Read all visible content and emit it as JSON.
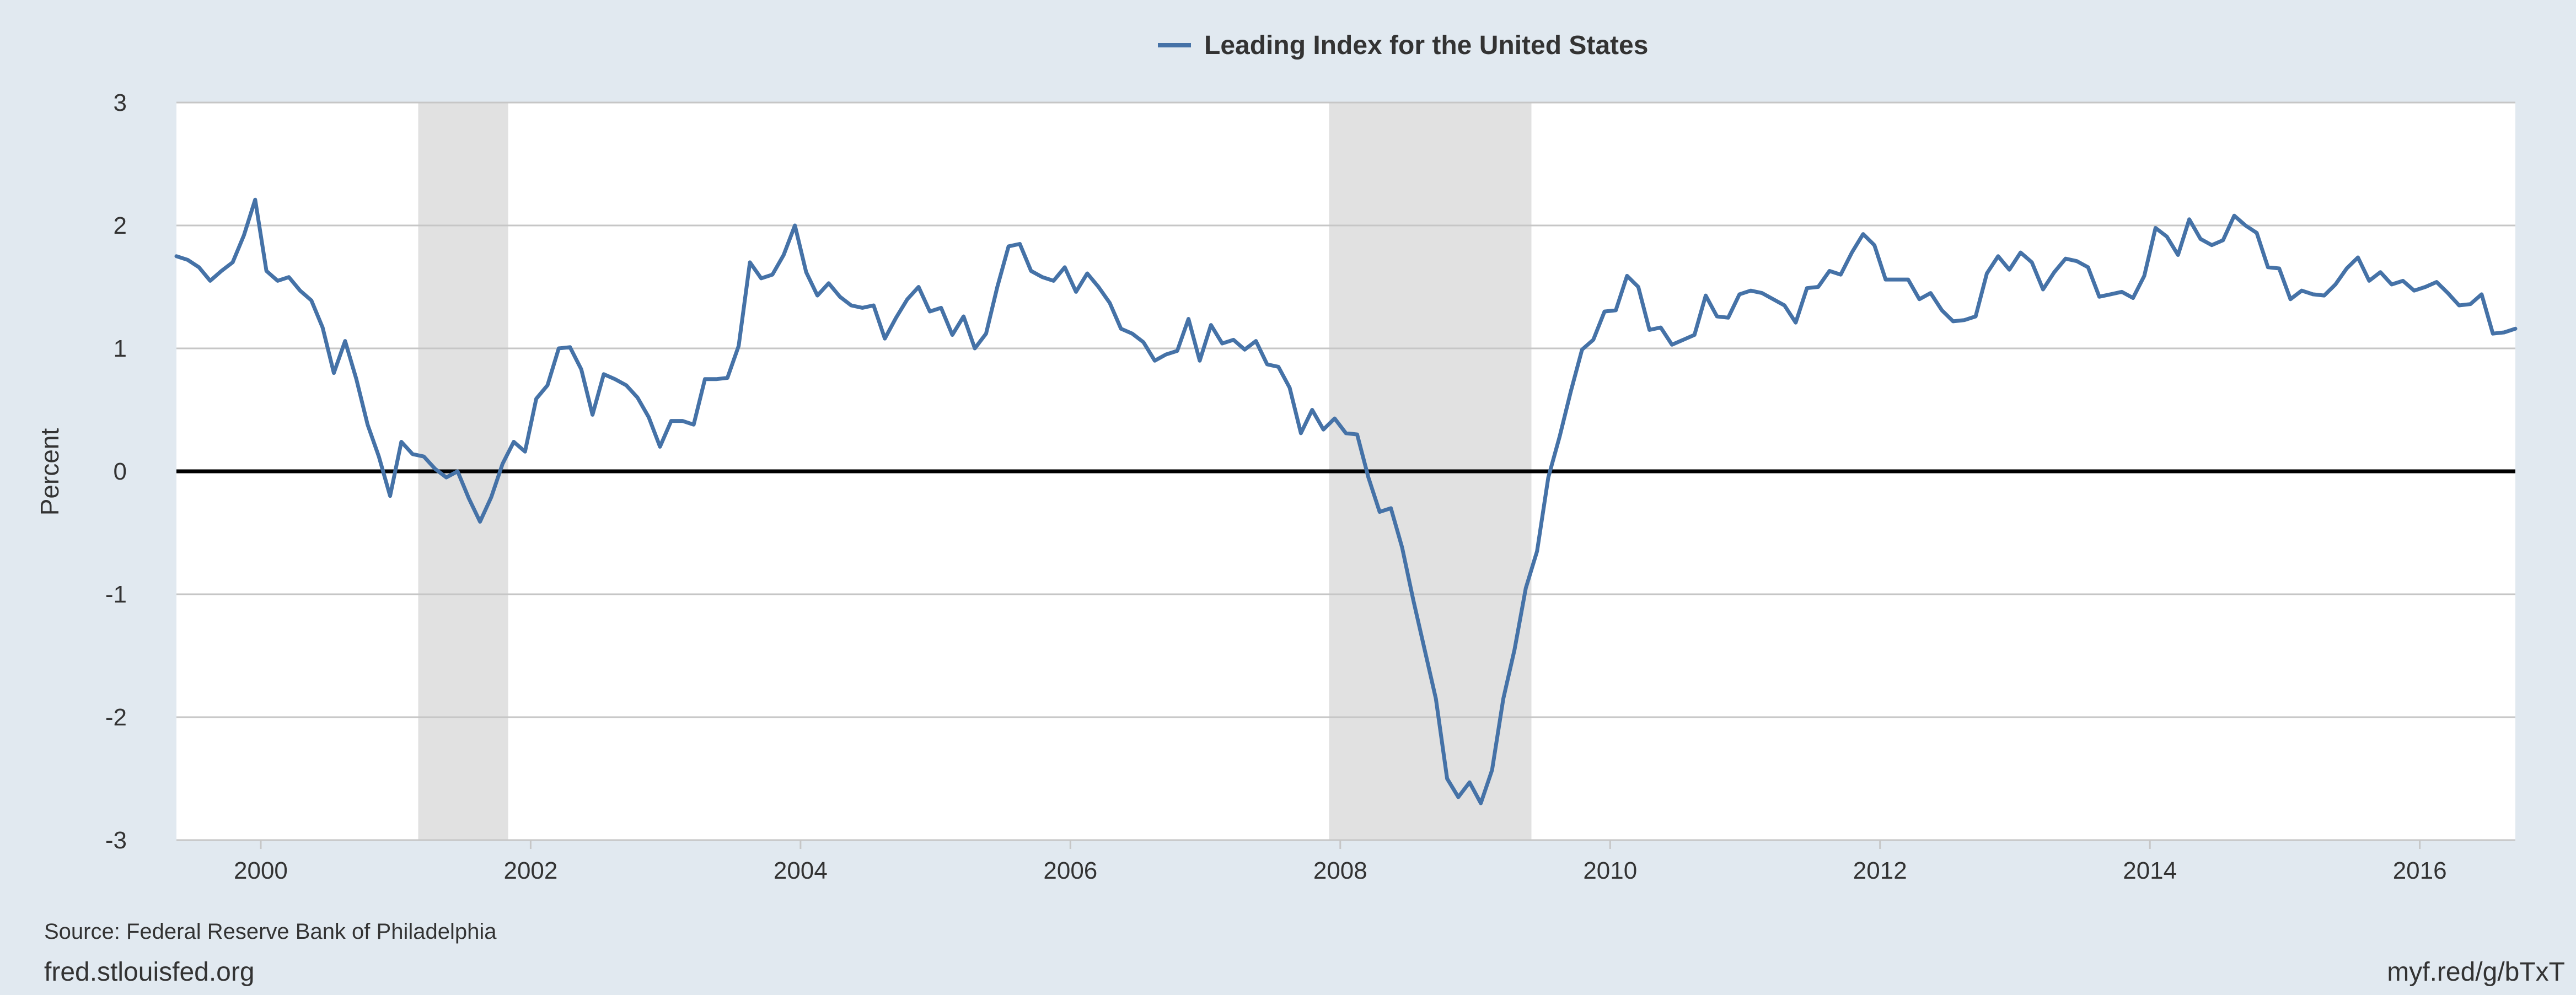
{
  "chart_data": {
    "type": "line",
    "title": "",
    "xlabel": "",
    "ylabel": "Percent",
    "ylim": [
      -3,
      3
    ],
    "xlim": [
      1999.375,
      2016.7083
    ],
    "x_ticks": [
      2000,
      2002,
      2004,
      2006,
      2008,
      2010,
      2012,
      2014,
      2016
    ],
    "x_tick_labels": [
      "2000",
      "2002",
      "2004",
      "2006",
      "2008",
      "2010",
      "2012",
      "2014",
      "2016"
    ],
    "y_ticks": [
      -3,
      -2,
      -1,
      0,
      1,
      2,
      3
    ],
    "y_tick_labels": [
      "-3",
      "-2",
      "-1",
      "0",
      "1",
      "2",
      "3"
    ],
    "grid": true,
    "zero_line": true,
    "legend": "top-center",
    "line_color": "#4572a7",
    "recessions": [
      {
        "start": 2001.1667,
        "end": 2001.8333
      },
      {
        "start": 2007.9167,
        "end": 2009.4167
      }
    ],
    "series": [
      {
        "name": "Leading Index for the United States",
        "color": "#4572a7",
        "start_year": 1999.375,
        "step": 0.08333333,
        "values": [
          1.75,
          1.72,
          1.66,
          1.55,
          1.63,
          1.7,
          1.92,
          2.21,
          1.63,
          1.55,
          1.58,
          1.47,
          1.39,
          1.17,
          0.8,
          1.06,
          0.75,
          0.38,
          0.12,
          -0.2,
          0.24,
          0.14,
          0.12,
          0.02,
          -0.05,
          0.0,
          -0.22,
          -0.41,
          -0.21,
          0.06,
          0.24,
          0.16,
          0.59,
          0.7,
          1.0,
          1.01,
          0.83,
          0.46,
          0.79,
          0.75,
          0.7,
          0.6,
          0.44,
          0.2,
          0.41,
          0.41,
          0.38,
          0.75,
          0.75,
          0.76,
          1.02,
          1.7,
          1.57,
          1.6,
          1.76,
          2.0,
          1.62,
          1.43,
          1.53,
          1.42,
          1.35,
          1.33,
          1.35,
          1.08,
          1.25,
          1.4,
          1.5,
          1.3,
          1.33,
          1.11,
          1.26,
          1.0,
          1.12,
          1.5,
          1.83,
          1.85,
          1.63,
          1.58,
          1.55,
          1.66,
          1.46,
          1.61,
          1.5,
          1.37,
          1.16,
          1.12,
          1.05,
          0.9,
          0.95,
          0.98,
          1.24,
          0.9,
          1.19,
          1.04,
          1.07,
          0.99,
          1.06,
          0.87,
          0.85,
          0.68,
          0.31,
          0.5,
          0.34,
          0.43,
          0.31,
          0.3,
          -0.05,
          -0.33,
          -0.3,
          -0.62,
          -1.05,
          -1.45,
          -1.85,
          -2.5,
          -2.65,
          -2.53,
          -2.7,
          -2.43,
          -1.85,
          -1.45,
          -0.95,
          -0.65,
          -0.05,
          0.28,
          0.65,
          0.99,
          1.07,
          1.3,
          1.31,
          1.59,
          1.5,
          1.15,
          1.17,
          1.03,
          1.07,
          1.11,
          1.43,
          1.26,
          1.25,
          1.44,
          1.47,
          1.45,
          1.4,
          1.35,
          1.21,
          1.49,
          1.5,
          1.63,
          1.6,
          1.78,
          1.93,
          1.84,
          1.56,
          1.56,
          1.56,
          1.4,
          1.45,
          1.31,
          1.22,
          1.23,
          1.26,
          1.61,
          1.75,
          1.64,
          1.78,
          1.7,
          1.48,
          1.62,
          1.73,
          1.71,
          1.66,
          1.42,
          1.44,
          1.46,
          1.41,
          1.59,
          1.98,
          1.91,
          1.76,
          2.05,
          1.89,
          1.84,
          1.88,
          2.08,
          2.0,
          1.94,
          1.66,
          1.65,
          1.4,
          1.47,
          1.44,
          1.43,
          1.52,
          1.65,
          1.74,
          1.55,
          1.62,
          1.52,
          1.55,
          1.47,
          1.5,
          1.54,
          1.45,
          1.35,
          1.36,
          1.44,
          1.12,
          1.13,
          1.16
        ]
      }
    ]
  },
  "footer": {
    "source": "Source: Federal Reserve Bank of Philadelphia",
    "site": "fred.stlouisfed.org",
    "short_link": "myf.red/g/bTxT"
  }
}
